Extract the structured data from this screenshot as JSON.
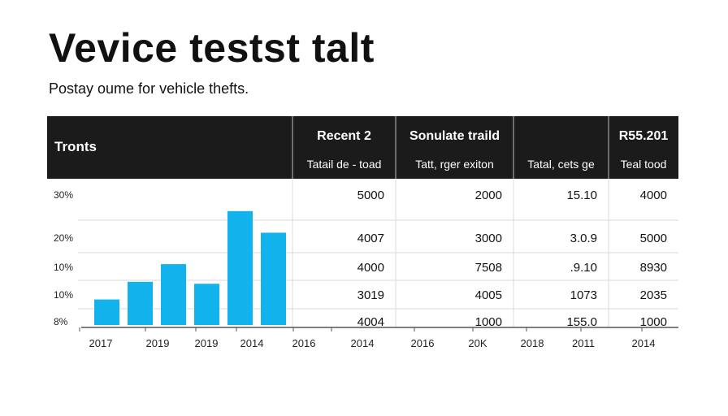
{
  "title": "Vevice testst talt",
  "subtitle": "Postay oume for vehicle thefts.",
  "colors": {
    "header_bg": "#1b1b1b",
    "header_text": "#ffffff",
    "bar": "#12b3ec",
    "grid": "#d9d9d9",
    "axis": "#555555"
  },
  "table": {
    "corner_label": "Tronts",
    "columns": [
      {
        "line1": "Recent 2",
        "line2": "Tatail de - toad"
      },
      {
        "line1": "Sonulate traild",
        "line2": "Tatt, rger exiton"
      },
      {
        "line1": "",
        "line2": "Tatal, cets ge"
      },
      {
        "line1": "R55.201",
        "line2": "Teal tood"
      }
    ],
    "rows": [
      [
        "5000",
        "2000",
        "15.10",
        "4000"
      ],
      [
        "4007",
        "3000",
        "3.0.9",
        "5000"
      ],
      [
        "4000",
        "7508",
        ".9.10",
        "8930"
      ],
      [
        "3019",
        "4005",
        "1073",
        "2035"
      ],
      [
        "4004",
        "1000",
        "155.0",
        "1000"
      ]
    ]
  },
  "chart_data": {
    "type": "bar",
    "title": "",
    "xlabel": "",
    "ylabel": "",
    "categories": [
      "",
      "",
      "",
      "",
      "",
      ""
    ],
    "values": [
      13,
      22,
      31,
      21,
      58,
      47
    ],
    "ylim": [
      0,
      60
    ],
    "y_tick_labels": [
      "30%",
      "20%",
      "10%",
      "10%",
      "8%"
    ],
    "grid": true
  },
  "x_axis_labels": [
    "2017",
    "2019",
    "2019",
    "2014",
    "2016",
    "2014",
    "2016",
    "20K",
    "2018",
    "2011",
    "2014"
  ]
}
